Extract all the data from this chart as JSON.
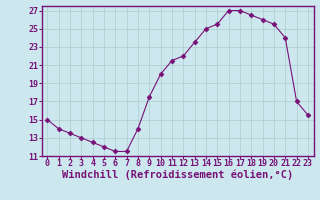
{
  "x": [
    0,
    1,
    2,
    3,
    4,
    5,
    6,
    7,
    8,
    9,
    10,
    11,
    12,
    13,
    14,
    15,
    16,
    17,
    18,
    19,
    20,
    21,
    22,
    23
  ],
  "y": [
    15,
    14,
    13.5,
    13,
    12.5,
    12,
    11.5,
    11.5,
    14,
    17.5,
    20,
    21.5,
    22,
    23.5,
    25,
    25.5,
    27,
    27,
    26.5,
    26,
    25.5,
    24,
    17,
    15.5
  ],
  "line_color": "#771177",
  "marker": "D",
  "marker_size": 2.5,
  "bg_color": "#cce8ee",
  "grid_color": "#aacccc",
  "border_color": "#771177",
  "xlabel": "Windchill (Refroidissement éolien,°C)",
  "xlim": [
    -0.5,
    23.5
  ],
  "ylim": [
    11,
    27.5
  ],
  "xticks": [
    0,
    1,
    2,
    3,
    4,
    5,
    6,
    7,
    8,
    9,
    10,
    11,
    12,
    13,
    14,
    15,
    16,
    17,
    18,
    19,
    20,
    21,
    22,
    23
  ],
  "yticks": [
    11,
    13,
    15,
    17,
    19,
    21,
    23,
    25,
    27
  ],
  "tick_label_fontsize": 6,
  "xlabel_fontsize": 7.5,
  "tick_color": "#771177",
  "xlabel_color": "#771177"
}
